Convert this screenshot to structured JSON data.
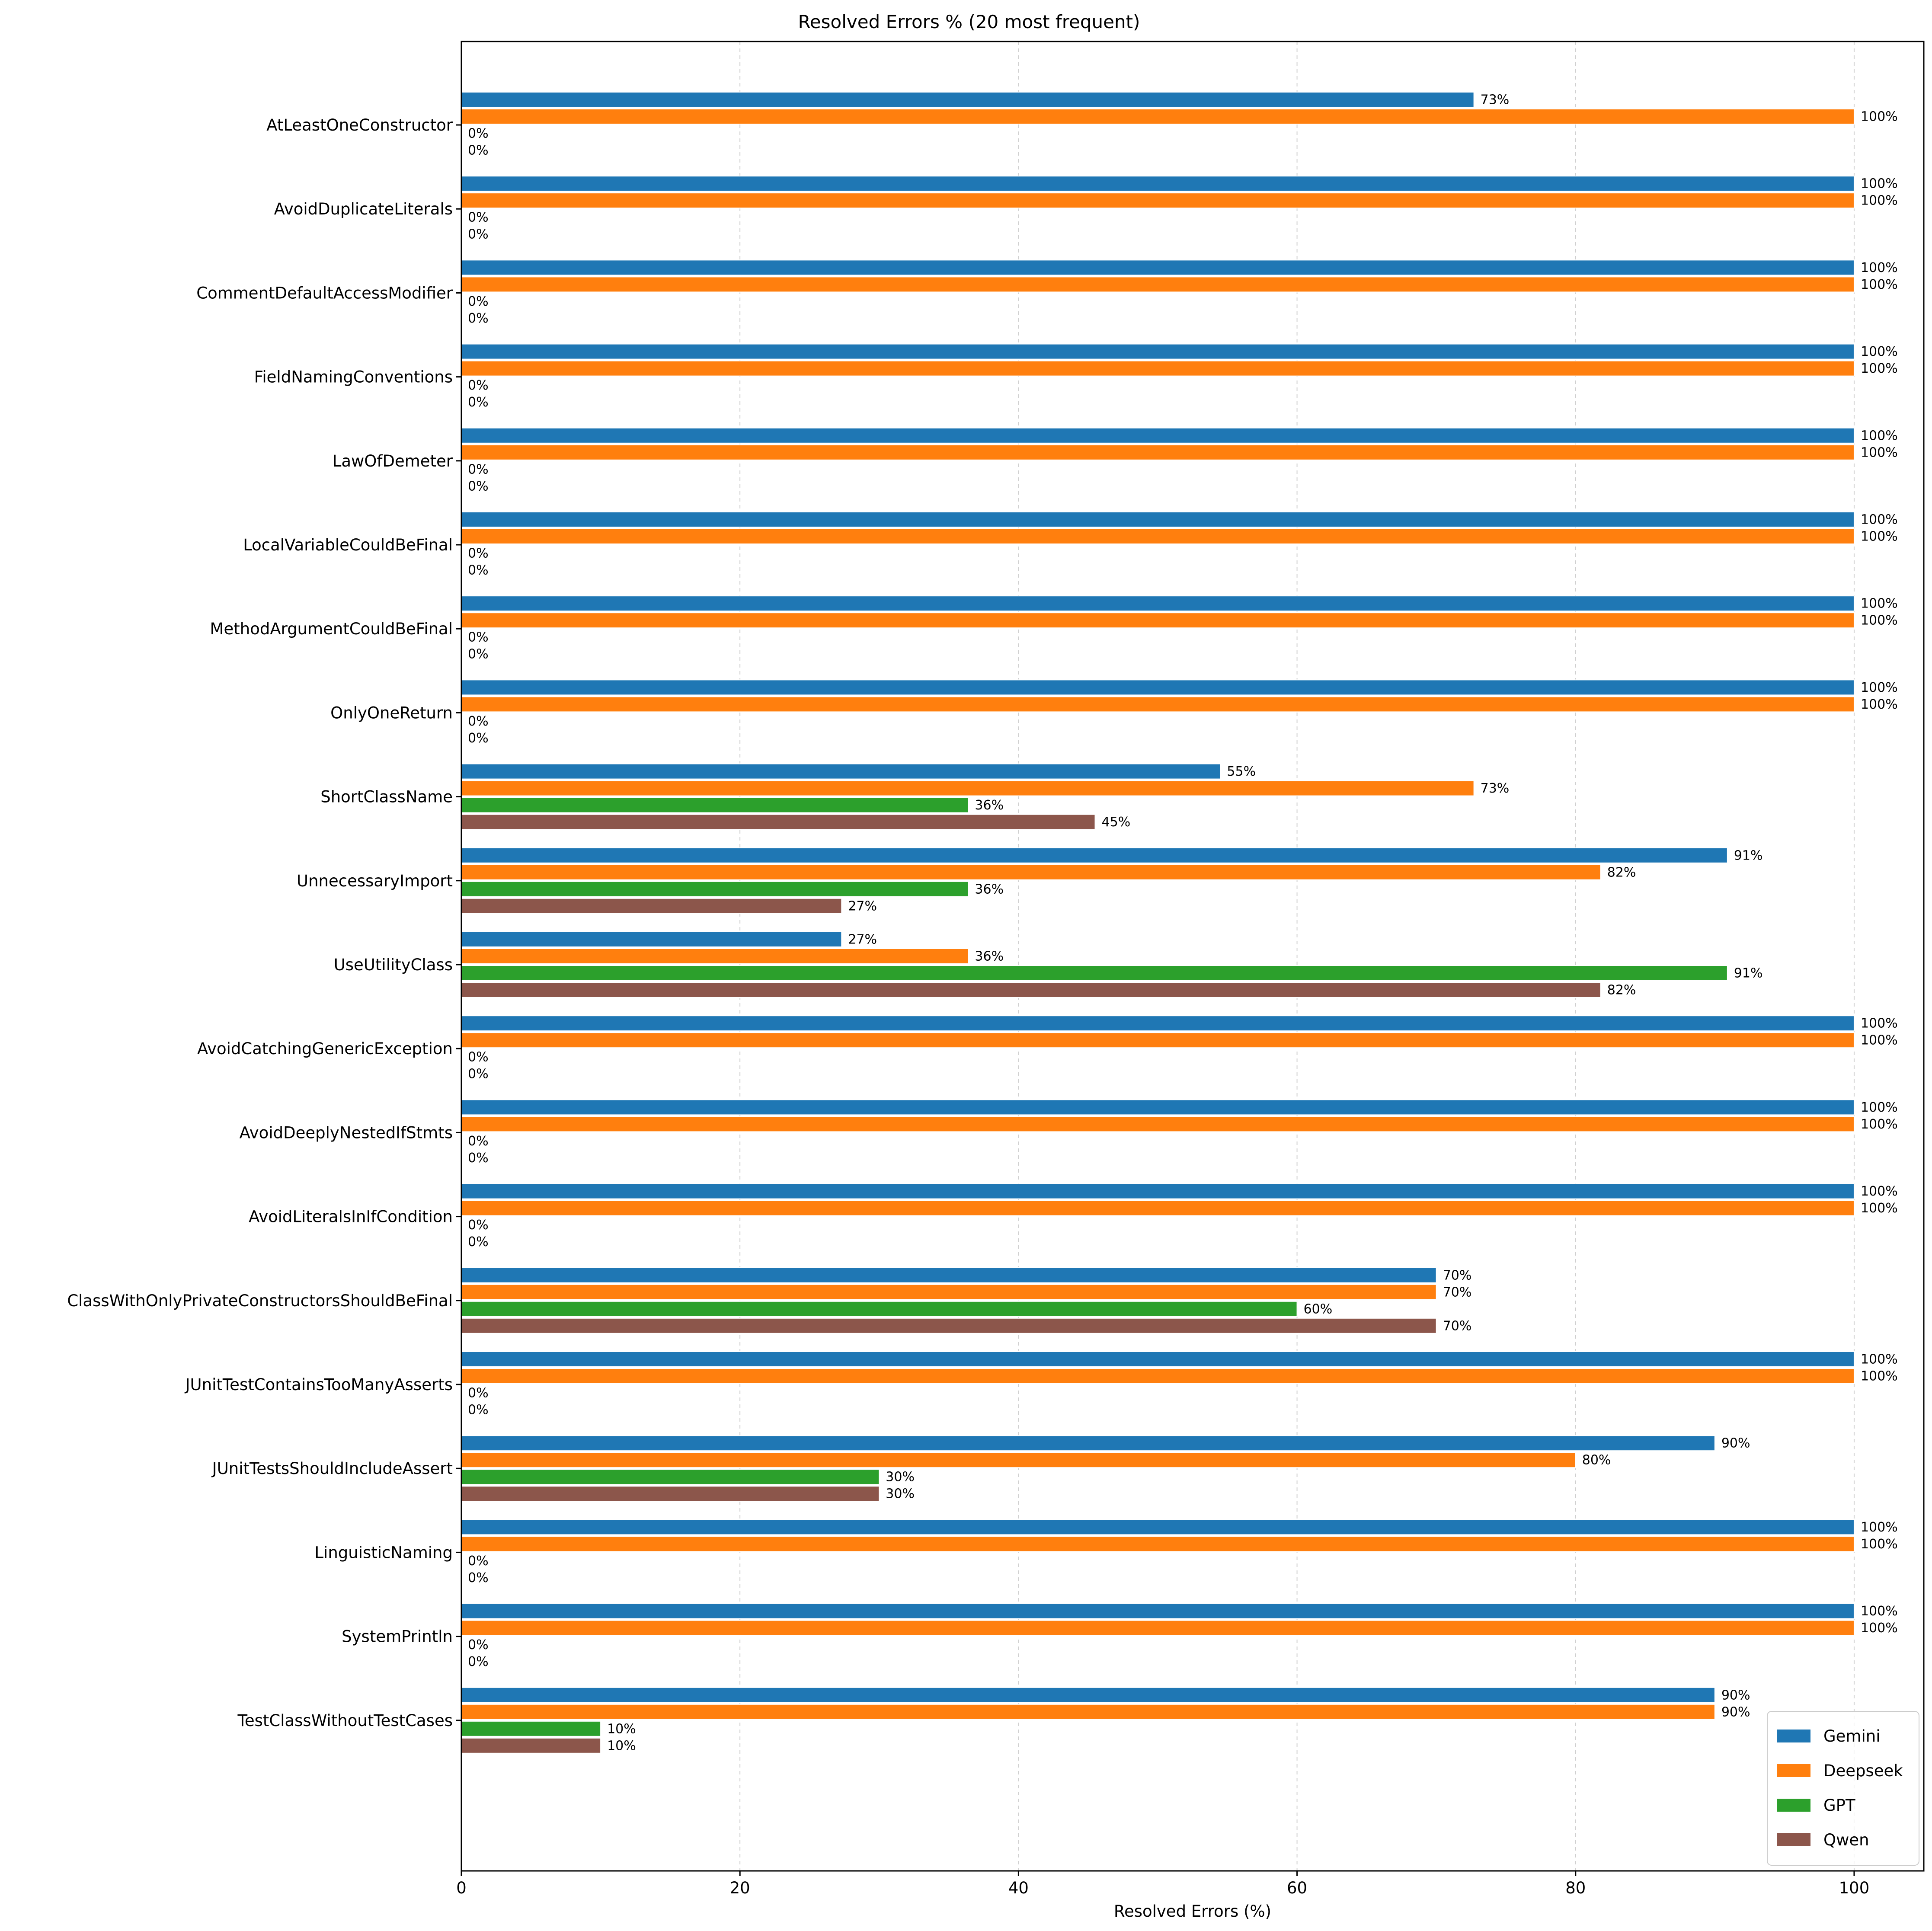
{
  "chart_data": {
    "type": "bar",
    "orientation": "horizontal",
    "title": "Resolved Errors % (20 most frequent)",
    "xlabel": "Resolved Errors (%)",
    "ylabel": "",
    "xlim": [
      0,
      105
    ],
    "xticks": [
      0,
      20,
      40,
      60,
      80,
      100
    ],
    "grid": "x",
    "legend_position": "bottom-right",
    "categories": [
      "AtLeastOneConstructor",
      "AvoidDuplicateLiterals",
      "CommentDefaultAccessModifier",
      "FieldNamingConventions",
      "LawOfDemeter",
      "LocalVariableCouldBeFinal",
      "MethodArgumentCouldBeFinal",
      "OnlyOneReturn",
      "ShortClassName",
      "UnnecessaryImport",
      "UseUtilityClass",
      "AvoidCatchingGenericException",
      "AvoidDeeplyNestedIfStmts",
      "AvoidLiteralsInIfCondition",
      "ClassWithOnlyPrivateConstructorsShouldBeFinal",
      "JUnitTestContainsTooManyAsserts",
      "JUnitTestsShouldIncludeAssert",
      "LinguisticNaming",
      "SystemPrintln",
      "TestClassWithoutTestCases"
    ],
    "series": [
      {
        "name": "Gemini",
        "color": "#1f77b4",
        "values": [
          72.7,
          100,
          100,
          100,
          100,
          100,
          100,
          100,
          54.5,
          90.9,
          27.3,
          100,
          100,
          100,
          70,
          100,
          90,
          100,
          100,
          90
        ]
      },
      {
        "name": "Deepseek",
        "color": "#ff7f0e",
        "values": [
          100,
          100,
          100,
          100,
          100,
          100,
          100,
          100,
          72.7,
          81.8,
          36.4,
          100,
          100,
          100,
          70,
          100,
          80,
          100,
          100,
          90
        ]
      },
      {
        "name": "GPT",
        "color": "#2ca02c",
        "values": [
          0,
          0,
          0,
          0,
          0,
          0,
          0,
          0,
          36.4,
          36.4,
          90.9,
          0,
          0,
          0,
          60,
          0,
          30,
          0,
          0,
          10
        ]
      },
      {
        "name": "Qwen",
        "color": "#8c564b",
        "values": [
          0,
          0,
          0,
          0,
          0,
          0,
          0,
          0,
          45.5,
          27.3,
          81.8,
          0,
          0,
          0,
          70,
          0,
          30,
          0,
          0,
          10
        ]
      }
    ],
    "data_labels": [
      [
        "73%",
        "100%",
        "0%",
        "0%"
      ],
      [
        "100%",
        "100%",
        "0%",
        "0%"
      ],
      [
        "100%",
        "100%",
        "0%",
        "0%"
      ],
      [
        "100%",
        "100%",
        "0%",
        "0%"
      ],
      [
        "100%",
        "100%",
        "0%",
        "0%"
      ],
      [
        "100%",
        "100%",
        "0%",
        "0%"
      ],
      [
        "100%",
        "100%",
        "0%",
        "0%"
      ],
      [
        "100%",
        "100%",
        "0%",
        "0%"
      ],
      [
        "55%",
        "73%",
        "36%",
        "45%"
      ],
      [
        "91%",
        "82%",
        "36%",
        "27%"
      ],
      [
        "27%",
        "36%",
        "91%",
        "82%"
      ],
      [
        "100%",
        "100%",
        "0%",
        "0%"
      ],
      [
        "100%",
        "100%",
        "0%",
        "0%"
      ],
      [
        "100%",
        "100%",
        "0%",
        "0%"
      ],
      [
        "70%",
        "70%",
        "60%",
        "70%"
      ],
      [
        "100%",
        "100%",
        "0%",
        "0%"
      ],
      [
        "90%",
        "80%",
        "30%",
        "30%"
      ],
      [
        "100%",
        "100%",
        "0%",
        "0%"
      ],
      [
        "100%",
        "100%",
        "0%",
        "0%"
      ],
      [
        "90%",
        "90%",
        "10%",
        "10%"
      ]
    ]
  }
}
